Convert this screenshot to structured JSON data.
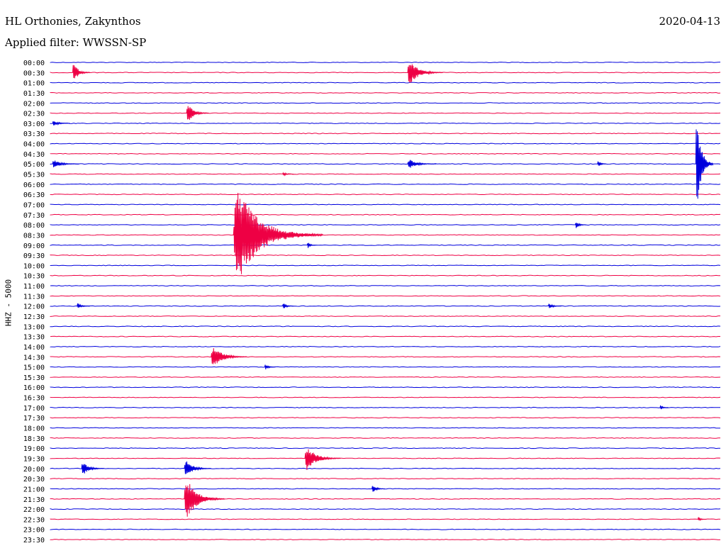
{
  "header": {
    "station": "HL Orthonies, Zakynthos",
    "date": "2020-04-13",
    "filter_prefix": "Applied filter:",
    "filter_name": "WWSSN-SP"
  },
  "channel_label": "HHZ - 5000",
  "colors": {
    "a": "#0000dd",
    "b": "#ee0044"
  },
  "chart_data": {
    "type": "line",
    "rows": [
      "00:00",
      "00:30",
      "01:00",
      "01:30",
      "02:00",
      "02:30",
      "03:00",
      "03:30",
      "04:00",
      "04:30",
      "05:00",
      "05:30",
      "06:00",
      "06:30",
      "07:00",
      "07:30",
      "08:00",
      "08:30",
      "09:00",
      "09:30",
      "10:00",
      "10:30",
      "11:00",
      "11:30",
      "12:00",
      "12:30",
      "13:00",
      "13:30",
      "14:00",
      "14:30",
      "15:00",
      "15:30",
      "16:00",
      "16:30",
      "17:00",
      "17:30",
      "18:00",
      "18:30",
      "19:00",
      "19:30",
      "20:00",
      "20:30",
      "21:00",
      "21:30",
      "22:00",
      "22:30",
      "23:00",
      "23:30"
    ],
    "row_minutes": 30,
    "events": [
      {
        "row": "00:30",
        "minute": 1.0,
        "amp": 1.3,
        "dur": 0.8
      },
      {
        "row": "00:30",
        "minute": 16.0,
        "amp": 1.6,
        "dur": 1.6
      },
      {
        "row": "02:30",
        "minute": 6.1,
        "amp": 1.3,
        "dur": 1.0
      },
      {
        "row": "03:00",
        "minute": 0.1,
        "amp": 0.4,
        "dur": 0.8
      },
      {
        "row": "05:00",
        "minute": 0.1,
        "amp": 0.6,
        "dur": 1.2
      },
      {
        "row": "05:00",
        "minute": 16.0,
        "amp": 0.6,
        "dur": 1.3
      },
      {
        "row": "05:00",
        "minute": 24.5,
        "amp": 0.5,
        "dur": 0.4
      },
      {
        "row": "05:00",
        "minute": 28.9,
        "amp": 6.5,
        "dur": 0.8
      },
      {
        "row": "05:30",
        "minute": 10.4,
        "amp": 0.3,
        "dur": 0.5
      },
      {
        "row": "08:00",
        "minute": 23.5,
        "amp": 0.5,
        "dur": 0.5
      },
      {
        "row": "08:30",
        "minute": 8.2,
        "amp": 6.0,
        "dur": 4.0
      },
      {
        "row": "09:00",
        "minute": 11.5,
        "amp": 0.5,
        "dur": 0.4
      },
      {
        "row": "12:00",
        "minute": 1.2,
        "amp": 0.4,
        "dur": 0.6
      },
      {
        "row": "12:00",
        "minute": 10.4,
        "amp": 0.5,
        "dur": 0.5
      },
      {
        "row": "12:00",
        "minute": 22.3,
        "amp": 0.4,
        "dur": 0.6
      },
      {
        "row": "14:30",
        "minute": 7.2,
        "amp": 1.5,
        "dur": 1.6
      },
      {
        "row": "15:00",
        "minute": 9.6,
        "amp": 0.4,
        "dur": 0.5
      },
      {
        "row": "19:30",
        "minute": 11.4,
        "amp": 1.7,
        "dur": 1.6
      },
      {
        "row": "20:00",
        "minute": 1.4,
        "amp": 0.9,
        "dur": 1.0
      },
      {
        "row": "20:00",
        "minute": 6.0,
        "amp": 1.2,
        "dur": 1.2
      },
      {
        "row": "21:00",
        "minute": 14.4,
        "amp": 0.6,
        "dur": 0.6
      },
      {
        "row": "21:30",
        "minute": 6.0,
        "amp": 2.8,
        "dur": 1.8
      },
      {
        "row": "22:30",
        "minute": 29.0,
        "amp": 0.3,
        "dur": 0.4
      },
      {
        "row": "17:00",
        "minute": 27.3,
        "amp": 0.3,
        "dur": 0.4
      }
    ]
  }
}
